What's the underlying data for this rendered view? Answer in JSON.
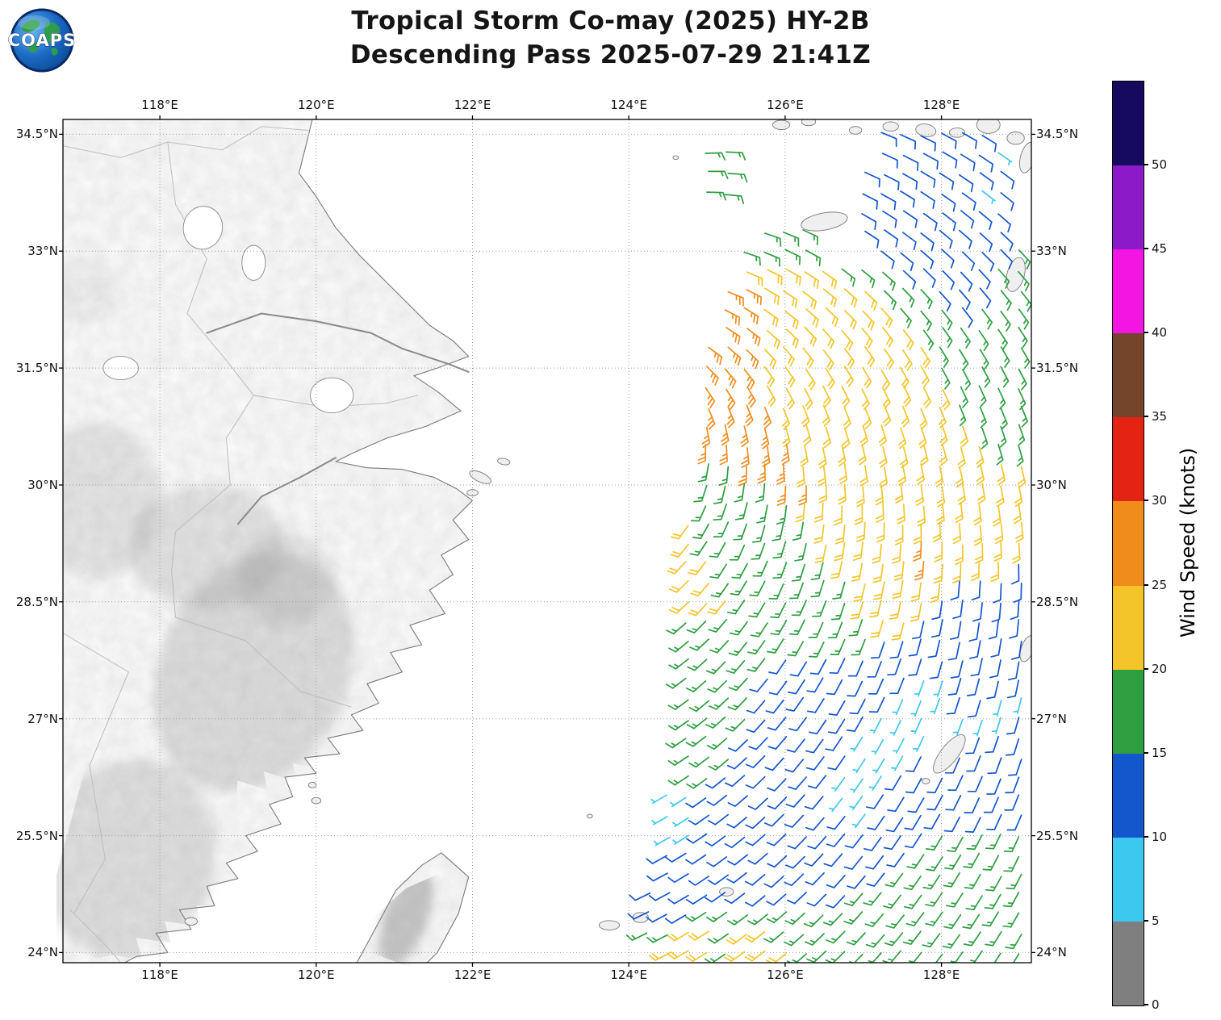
{
  "header": {
    "title_line1": "Tropical Storm Co-may (2025) HY-2B",
    "title_line2": "Descending Pass 2025-07-29 21:41Z",
    "logo_text": "COAPS"
  },
  "chart_data": {
    "type": "scatter",
    "subtype": "wind-barb-satellite-swath-map",
    "title": "Tropical Storm Co-may (2025) HY-2B Descending Pass 2025-07-29 21:41Z",
    "lon_range": [
      116.76,
      129.15
    ],
    "lat_range": [
      23.87,
      34.69
    ],
    "lon_ticks": [
      {
        "v": 118,
        "label": "118°E"
      },
      {
        "v": 120,
        "label": "120°E"
      },
      {
        "v": 122,
        "label": "122°E"
      },
      {
        "v": 124,
        "label": "124°E"
      },
      {
        "v": 126,
        "label": "126°E"
      },
      {
        "v": 128,
        "label": "128°E"
      }
    ],
    "lat_ticks": [
      {
        "v": 34.5,
        "label": "34.5°N"
      },
      {
        "v": 33,
        "label": "33°N"
      },
      {
        "v": 31.5,
        "label": "31.5°N"
      },
      {
        "v": 30,
        "label": "30°N"
      },
      {
        "v": 28.5,
        "label": "28.5°N"
      },
      {
        "v": 27,
        "label": "27°N"
      },
      {
        "v": 25.5,
        "label": "25.5°N"
      },
      {
        "v": 24,
        "label": "24°N"
      }
    ],
    "colorbar": {
      "label": "Wind Speed (knots)",
      "min": 0,
      "max": 55,
      "tick_values": [
        0,
        5,
        10,
        15,
        20,
        25,
        30,
        35,
        40,
        45,
        50
      ],
      "bands": [
        {
          "from": 0,
          "to": 5,
          "color": "#7f7f7f"
        },
        {
          "from": 5,
          "to": 10,
          "color": "#3dc8f0"
        },
        {
          "from": 10,
          "to": 15,
          "color": "#1456cc"
        },
        {
          "from": 15,
          "to": 20,
          "color": "#2e9e41"
        },
        {
          "from": 20,
          "to": 25,
          "color": "#f4c52a"
        },
        {
          "from": 25,
          "to": 30,
          "color": "#f08c1b"
        },
        {
          "from": 30,
          "to": 35,
          "color": "#e42313"
        },
        {
          "from": 35,
          "to": 40,
          "color": "#74452b"
        },
        {
          "from": 40,
          "to": 45,
          "color": "#f316e3"
        },
        {
          "from": 45,
          "to": 50,
          "color": "#8c1ac8"
        },
        {
          "from": 50,
          "to": 55,
          "color": "#150a5e"
        }
      ]
    },
    "wind_field": {
      "legend": {
        "c": "5-10 kt (cyan)",
        "b": "10-15 kt (blue)",
        "g": "15-20 kt (green)",
        "y": "20-25 kt (yellow)",
        "o": "25-30 kt (orange)",
        ".": "no data / land"
      },
      "speed_colors": {
        "c": "#3dc8f0",
        "b": "#1456cc",
        "g": "#2e9e41",
        "y": "#f4c52a",
        "o": "#f08c1b"
      },
      "representative_knots": {
        "c": 7.5,
        "b": 12.5,
        "g": 17.5,
        "y": 22.5,
        "o": 27.5
      },
      "barb_feathers": {
        "c": [
          0,
          1
        ],
        "b": [
          1,
          0
        ],
        "g": [
          1,
          1
        ],
        "y": [
          2,
          0
        ],
        "o": [
          2,
          1
        ]
      },
      "grid_origin": [
        124.0,
        34.5
      ],
      "grid_step": 0.25,
      "circulation_center": [
        123.8,
        31.0
      ],
      "inflow_deg": 22,
      "rows": [
        ".............bbbbbb..",
        "....gg.......bbbbbbc.",
        "....gg......bbbbbbbb.",
        "....gg......bbbbbbcb.",
        "............bbbbbbbb.",
        ".......ggg..bbbbbbbb.",
        "......gggg...bbbbbbbg",
        "......yyyyygggbbbbbgg",
        ".....ooyyyyyygggbbbgg",
        ".....ooyyyyyyygggbggg",
        ".....ooyyyyyyyygggggg",
        "....oooyyyyyyyyyggggg",
        "....oooyyyyyyyyyggggg",
        "....oooyyyyyyyyyygggg",
        "....ooooyyyyyyyyygggg",
        "....ooooyyyyyyyyyyggg",
        "....oooooyyyyyyyyyygg",
        "....ggoooyyyyyyyyyyyy",
        "....ggggooyyyyyyyyyyy",
        "....gggggyyyyyyyyyyyy",
        "...yggggggyyyyyyyyyyy",
        "...yggggggyyyyyoyyyyy",
        "...yyggggggyyyyoyyyyb",
        "...yygggggggyyyyybbbb",
        "...yyyggggggyyyybbbbb",
        "...ggggggggggyybbbbbb",
        "...ggggggggggbbbbbbbb",
        "...gggggbbbbbbbbbbbbb",
        "...ggggbbbbbbbbccbbbb",
        "...ggggbbbbbbbcccbbcc",
        "...ggggbbbbbbccc.cccb",
        "...gggbbbbbbcccc..bbb",
        "...gggbbbbbbcccb.bbbb",
        "...ggbbbbbbcccbbbbbbb",
        "..ccbbbbbbbccbbbbbbbb",
        "..ccbbbbbbbbcbbbbbbbb",
        "..ccbbbbbbbbbbbbggggg",
        "..bbbbbbbbbbbbbgggggg",
        "..bbbbbbbbbbbbggggggg",
        ".bbbbbbbbbbbggggggggg",
        ".bbbggggggggggggggggg",
        ".ggyygyyggggggggggggg",
        "..yyygyyygggggggggggg"
      ]
    }
  },
  "map": {
    "grid_color": "#9e9e9e",
    "coast_color": "#7a7a7a",
    "border_color": "#bdbdbd",
    "land_fill": "#fbfbfb",
    "island_fill": "#efefef",
    "coast_mainland": [
      [
        119.95,
        34.69
      ],
      [
        119.88,
        34.4
      ],
      [
        119.78,
        34.0
      ],
      [
        120.0,
        33.7
      ],
      [
        120.25,
        33.3
      ],
      [
        120.55,
        32.95
      ],
      [
        120.85,
        32.65
      ],
      [
        121.15,
        32.35
      ],
      [
        121.45,
        32.05
      ],
      [
        121.75,
        31.85
      ],
      [
        121.95,
        31.65
      ],
      [
        121.55,
        31.5
      ],
      [
        121.25,
        31.4
      ],
      [
        121.55,
        31.2
      ],
      [
        121.85,
        30.95
      ],
      [
        121.4,
        30.75
      ],
      [
        120.9,
        30.6
      ],
      [
        120.45,
        30.4
      ],
      [
        120.25,
        30.3
      ],
      [
        120.65,
        30.22
      ],
      [
        121.1,
        30.2
      ],
      [
        121.5,
        30.1
      ],
      [
        121.8,
        29.95
      ],
      [
        122.0,
        29.8
      ],
      [
        121.75,
        29.55
      ],
      [
        121.95,
        29.3
      ],
      [
        121.6,
        29.1
      ],
      [
        121.75,
        28.85
      ],
      [
        121.45,
        28.65
      ],
      [
        121.65,
        28.35
      ],
      [
        121.2,
        28.2
      ],
      [
        121.35,
        27.95
      ],
      [
        120.95,
        27.85
      ],
      [
        121.1,
        27.6
      ],
      [
        120.65,
        27.45
      ],
      [
        120.8,
        27.2
      ],
      [
        120.45,
        27.05
      ],
      [
        120.6,
        26.85
      ],
      [
        120.15,
        26.75
      ],
      [
        120.3,
        26.55
      ],
      [
        119.85,
        26.5
      ],
      [
        120.0,
        26.3
      ],
      [
        119.6,
        26.25
      ],
      [
        119.7,
        26.0
      ],
      [
        119.4,
        25.9
      ],
      [
        119.55,
        25.65
      ],
      [
        119.1,
        25.5
      ],
      [
        119.25,
        25.3
      ],
      [
        118.85,
        25.15
      ],
      [
        119.0,
        24.95
      ],
      [
        118.6,
        24.85
      ],
      [
        118.7,
        24.6
      ],
      [
        118.25,
        24.55
      ],
      [
        118.4,
        24.3
      ],
      [
        117.95,
        24.25
      ],
      [
        118.1,
        24.0
      ],
      [
        117.7,
        23.95
      ],
      [
        117.55,
        23.87
      ]
    ],
    "coast_taiwan": [
      [
        121.42,
        23.87
      ],
      [
        121.55,
        24.0
      ],
      [
        121.82,
        24.5
      ],
      [
        121.95,
        24.97
      ],
      [
        121.6,
        25.28
      ],
      [
        121.35,
        25.12
      ],
      [
        121.02,
        24.8
      ],
      [
        120.78,
        24.35
      ],
      [
        120.52,
        23.87
      ]
    ],
    "province_borders": [
      [
        [
          116.76,
          34.35
        ],
        [
          117.5,
          34.2
        ],
        [
          118.1,
          34.4
        ],
        [
          118.8,
          34.3
        ],
        [
          119.3,
          34.6
        ],
        [
          119.9,
          34.55
        ]
      ],
      [
        [
          118.1,
          34.4
        ],
        [
          118.2,
          33.6
        ],
        [
          118.6,
          32.9
        ],
        [
          118.35,
          32.2
        ],
        [
          118.85,
          31.6
        ],
        [
          119.2,
          31.15
        ]
      ],
      [
        [
          119.2,
          31.15
        ],
        [
          120.1,
          31.0
        ],
        [
          120.9,
          31.05
        ],
        [
          121.3,
          31.15
        ]
      ],
      [
        [
          119.2,
          31.15
        ],
        [
          118.85,
          30.6
        ],
        [
          118.9,
          30.0
        ],
        [
          118.2,
          29.4
        ],
        [
          118.15,
          28.9
        ],
        [
          118.2,
          28.3
        ]
      ],
      [
        [
          118.2,
          28.3
        ],
        [
          119.1,
          28.0
        ],
        [
          119.8,
          27.35
        ],
        [
          120.45,
          27.15
        ]
      ],
      [
        [
          116.76,
          28.1
        ],
        [
          117.6,
          27.6
        ],
        [
          117.1,
          26.4
        ],
        [
          117.3,
          25.2
        ],
        [
          116.9,
          24.5
        ]
      ],
      [
        [
          116.85,
          24.55
        ],
        [
          117.3,
          24.1
        ],
        [
          117.5,
          23.87
        ]
      ]
    ],
    "rivers": [
      [
        [
          118.6,
          31.95
        ],
        [
          119.3,
          32.2
        ],
        [
          120.0,
          32.1
        ],
        [
          120.7,
          31.95
        ],
        [
          121.1,
          31.75
        ],
        [
          121.7,
          31.55
        ],
        [
          121.95,
          31.45
        ]
      ],
      [
        [
          120.25,
          30.35
        ],
        [
          119.8,
          30.1
        ],
        [
          119.3,
          29.85
        ],
        [
          119.0,
          29.5
        ]
      ]
    ],
    "lakes": [
      [
        118.55,
        33.3,
        0.5,
        0.55,
        10
      ],
      [
        119.2,
        32.85,
        0.3,
        0.45,
        0
      ],
      [
        120.2,
        31.15,
        0.55,
        0.45,
        0
      ],
      [
        117.5,
        31.5,
        0.45,
        0.3,
        0
      ]
    ],
    "islands": [
      [
        125.95,
        34.62,
        0.22,
        0.12,
        0
      ],
      [
        126.3,
        34.66,
        0.18,
        0.1,
        0
      ],
      [
        126.9,
        34.55,
        0.16,
        0.1,
        0
      ],
      [
        127.35,
        34.6,
        0.2,
        0.12,
        0
      ],
      [
        127.8,
        34.55,
        0.26,
        0.16,
        10
      ],
      [
        128.2,
        34.52,
        0.2,
        0.12,
        0
      ],
      [
        128.6,
        34.62,
        0.3,
        0.22,
        0
      ],
      [
        128.95,
        34.45,
        0.22,
        0.16,
        0
      ],
      [
        129.1,
        34.2,
        0.18,
        0.4,
        15
      ],
      [
        126.5,
        33.38,
        0.6,
        0.22,
        -10
      ],
      [
        128.95,
        32.7,
        0.22,
        0.45,
        15
      ],
      [
        122.1,
        30.1,
        0.3,
        0.12,
        25
      ],
      [
        122.4,
        30.3,
        0.16,
        0.08,
        10
      ],
      [
        122.0,
        29.9,
        0.14,
        0.08,
        0
      ],
      [
        120.0,
        25.95,
        0.12,
        0.08,
        0
      ],
      [
        119.95,
        26.15,
        0.1,
        0.07,
        0
      ],
      [
        118.4,
        24.4,
        0.16,
        0.1,
        0
      ],
      [
        128.1,
        26.55,
        0.22,
        0.6,
        38
      ],
      [
        127.8,
        26.2,
        0.1,
        0.07,
        0
      ],
      [
        129.1,
        27.9,
        0.16,
        0.35,
        20
      ],
      [
        125.25,
        24.78,
        0.18,
        0.11,
        0
      ],
      [
        124.15,
        24.45,
        0.2,
        0.13,
        0
      ],
      [
        123.75,
        24.35,
        0.26,
        0.12,
        0
      ],
      [
        123.5,
        25.75,
        0.07,
        0.05,
        0
      ],
      [
        124.6,
        34.2,
        0.07,
        0.05,
        0
      ]
    ],
    "terrain_shading": [
      [
        119.2,
        27.6,
        2.4,
        3.2,
        25,
        0.28
      ],
      [
        117.6,
        25.2,
        2.2,
        2.6,
        15,
        0.26
      ],
      [
        118.6,
        29.2,
        2.0,
        1.6,
        0,
        0.22
      ],
      [
        117.2,
        29.8,
        1.6,
        2.0,
        0,
        0.2
      ],
      [
        119.6,
        28.8,
        1.2,
        1.2,
        0,
        0.2
      ],
      [
        117.0,
        32.5,
        1.0,
        0.8,
        0,
        0.1
      ],
      [
        121.15,
        24.45,
        0.55,
        1.35,
        20,
        0.5
      ]
    ]
  }
}
